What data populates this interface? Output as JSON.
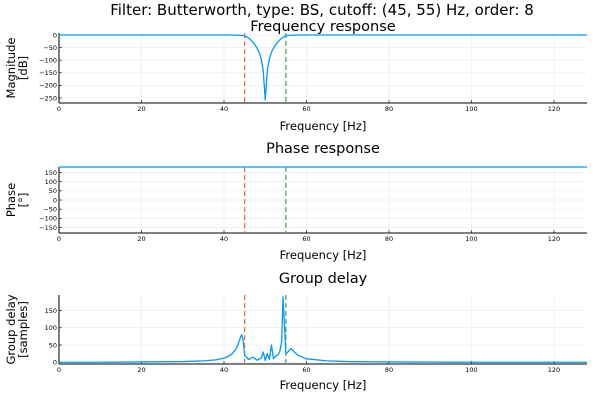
{
  "figure": {
    "title": "Filter: Butterworth, type: BS, cutoff: (45, 55) Hz, order: 8"
  },
  "colors": {
    "trace": "#009af9",
    "cutoff_low": "#e26f46",
    "cutoff_high": "#3da44d"
  },
  "chart_data": [
    {
      "type": "line",
      "title": "Frequency response",
      "xlabel": "Frequency [Hz]",
      "ylabel": [
        "Magnitude",
        "[dB]"
      ],
      "xlim": [
        0,
        128
      ],
      "ylim": [
        -270,
        8
      ],
      "xticks": [
        0,
        20,
        40,
        60,
        80,
        100,
        120
      ],
      "yticks": [
        0,
        -50,
        -100,
        -150,
        -200,
        -250
      ],
      "grid": true,
      "cutoffs": [
        45,
        55
      ],
      "series": [
        {
          "x": [
            0,
            20,
            40,
            43,
            44,
            45,
            46,
            47,
            47.5,
            48,
            48.5,
            49,
            49.5,
            50,
            50.5,
            51,
            51.5,
            52,
            52.5,
            53,
            54,
            55,
            56,
            57,
            60,
            80,
            100,
            128
          ],
          "values": [
            0,
            0,
            0,
            -0.5,
            -1.5,
            -3,
            -12,
            -28,
            -38,
            -52,
            -68,
            -95,
            -140,
            -258,
            -140,
            -95,
            -68,
            -52,
            -40,
            -28,
            -12,
            -3,
            -1.5,
            -0.5,
            0,
            0,
            0,
            0
          ]
        }
      ]
    },
    {
      "type": "line",
      "title": "Phase response",
      "xlabel": "Frequency [Hz]",
      "ylabel": [
        "Phase",
        "[°]"
      ],
      "xlim": [
        0,
        128
      ],
      "ylim": [
        -180,
        180
      ],
      "xticks": [
        0,
        20,
        40,
        60,
        80,
        100,
        120
      ],
      "yticks": [
        150,
        100,
        50,
        0,
        -50,
        -100,
        -150
      ],
      "grid": true,
      "cutoffs": [
        45,
        55
      ],
      "series": [
        {
          "x": [
            0,
            128
          ],
          "values": [
            180,
            180
          ]
        }
      ]
    },
    {
      "type": "line",
      "title": "Group delay",
      "xlabel": "Frequency [Hz]",
      "ylabel": [
        "Group delay",
        "[samples]"
      ],
      "xlim": [
        0,
        128
      ],
      "ylim": [
        -5,
        195
      ],
      "xticks": [
        0,
        20,
        40,
        60,
        80,
        100,
        120
      ],
      "yticks": [
        0,
        50,
        100,
        150
      ],
      "grid": true,
      "cutoffs": [
        45,
        55
      ],
      "series": [
        {
          "x": [
            0,
            10,
            20,
            30,
            35,
            38,
            40,
            41,
            42,
            43,
            43.5,
            44,
            44.3,
            44.6,
            45,
            46,
            47,
            48,
            49,
            49.5,
            50,
            50.5,
            51,
            51.5,
            52,
            52.5,
            53,
            53.5,
            54,
            54.3,
            54.6,
            55,
            55.4,
            55.8,
            56.3,
            57,
            58,
            60,
            65,
            70,
            80,
            100,
            128
          ],
          "values": [
            0,
            0,
            1,
            2,
            4,
            7,
            12,
            17,
            25,
            40,
            55,
            72,
            80,
            68,
            20,
            8,
            15,
            6,
            12,
            30,
            5,
            25,
            8,
            50,
            10,
            18,
            20,
            30,
            60,
            190,
            120,
            25,
            28,
            35,
            40,
            30,
            20,
            10,
            4,
            2,
            1,
            0,
            0
          ]
        }
      ]
    }
  ]
}
